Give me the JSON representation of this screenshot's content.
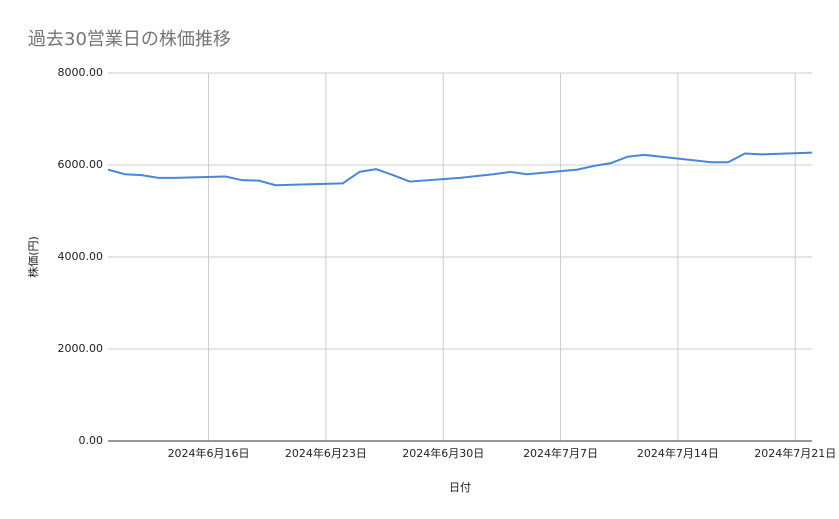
{
  "chart_data": {
    "type": "line",
    "title": "過去30営業日の株価推移",
    "x_label": "日付",
    "y_label": "株価(円)",
    "x": [
      "2024-06-10",
      "2024-06-11",
      "2024-06-12",
      "2024-06-13",
      "2024-06-14",
      "2024-06-17",
      "2024-06-18",
      "2024-06-19",
      "2024-06-20",
      "2024-06-21",
      "2024-06-24",
      "2024-06-25",
      "2024-06-26",
      "2024-06-27",
      "2024-06-28",
      "2024-07-01",
      "2024-07-02",
      "2024-07-03",
      "2024-07-04",
      "2024-07-05",
      "2024-07-08",
      "2024-07-09",
      "2024-07-10",
      "2024-07-11",
      "2024-07-12",
      "2024-07-16",
      "2024-07-17",
      "2024-07-18",
      "2024-07-19",
      "2024-07-22"
    ],
    "series": [
      {
        "name": "株価",
        "color": "#4a86d8",
        "values": [
          5900,
          5800,
          5780,
          5720,
          5720,
          5750,
          5670,
          5660,
          5560,
          5570,
          5600,
          5850,
          5910,
          5780,
          5640,
          5720,
          5760,
          5800,
          5850,
          5800,
          5900,
          5980,
          6040,
          6180,
          6220,
          6060,
          6060,
          6250,
          6230,
          6270
        ]
      }
    ],
    "xlim": [
      "2024-06-10",
      "2024-07-22"
    ],
    "xticks": [
      {
        "value": "2024-06-16",
        "label": "2024年6月16日"
      },
      {
        "value": "2024-06-23",
        "label": "2024年6月23日"
      },
      {
        "value": "2024-06-30",
        "label": "2024年6月30日"
      },
      {
        "value": "2024-07-07",
        "label": "2024年7月7日"
      },
      {
        "value": "2024-07-14",
        "label": "2024年7月14日"
      },
      {
        "value": "2024-07-21",
        "label": "2024年7月21日"
      }
    ],
    "ylim": [
      0,
      8000
    ],
    "yticks": [
      {
        "value": 0,
        "label": "0.00"
      },
      {
        "value": 2000,
        "label": "2000.00"
      },
      {
        "value": 4000,
        "label": "4000.00"
      },
      {
        "value": 6000,
        "label": "6000.00"
      },
      {
        "value": 8000,
        "label": "8000.00"
      }
    ],
    "grid": true
  }
}
